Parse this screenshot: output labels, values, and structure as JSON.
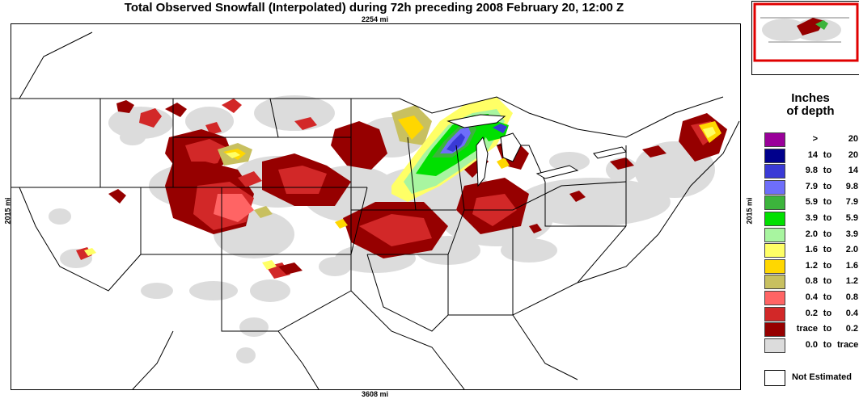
{
  "title": "Total Observed Snowfall (Interpolated) during 72h preceding 2008 February 20, 12:00 Z",
  "distances": {
    "top": "2254 mi",
    "bottom": "3608 mi",
    "left": "2015 mi",
    "right": "2015 mi"
  },
  "legend": {
    "title_line1": "Inches",
    "title_line2": "of depth",
    "items": [
      {
        "from": ">",
        "to": "",
        "val": "20",
        "color": "#9a009a"
      },
      {
        "from": "14",
        "to": "to",
        "val": "20",
        "color": "#00008c"
      },
      {
        "from": "9.8",
        "to": "to",
        "val": "14",
        "color": "#3a3ad6"
      },
      {
        "from": "7.9",
        "to": "to",
        "val": "9.8",
        "color": "#6e6efa"
      },
      {
        "from": "5.9",
        "to": "to",
        "val": "7.9",
        "color": "#3cb43c"
      },
      {
        "from": "3.9",
        "to": "to",
        "val": "5.9",
        "color": "#00e000"
      },
      {
        "from": "2.0",
        "to": "to",
        "val": "3.9",
        "color": "#a8f5a0"
      },
      {
        "from": "1.6",
        "to": "to",
        "val": "2.0",
        "color": "#ffff66"
      },
      {
        "from": "1.2",
        "to": "to",
        "val": "1.6",
        "color": "#ffd700"
      },
      {
        "from": "0.8",
        "to": "to",
        "val": "1.2",
        "color": "#c8c060"
      },
      {
        "from": "0.4",
        "to": "to",
        "val": "0.8",
        "color": "#ff6464"
      },
      {
        "from": "0.2",
        "to": "to",
        "val": "0.4",
        "color": "#d22828"
      },
      {
        "from": "trace",
        "to": "to",
        "val": "0.2",
        "color": "#960000"
      },
      {
        "from": "0.0",
        "to": "to",
        "val": "trace",
        "color": "#dcdcdc"
      }
    ],
    "not_estimated": "Not Estimated"
  }
}
